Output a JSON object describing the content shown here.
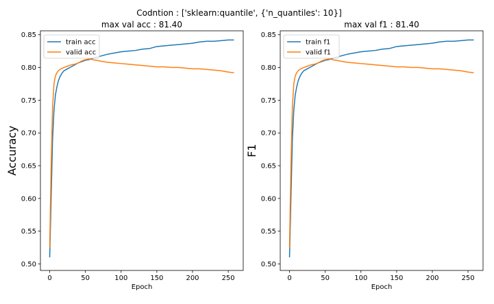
{
  "suptitle": "Codntion : ['sklearn:quantile', {'n_quantiles': 10}]",
  "chart_data": [
    {
      "type": "line",
      "title": "max val acc : 81.40",
      "xlabel": "Epoch",
      "ylabel": "Accuracy",
      "xlim": [
        -13,
        271
      ],
      "ylim": [
        0.49,
        0.856
      ],
      "xticks": [
        0,
        50,
        100,
        150,
        200,
        250
      ],
      "yticks": [
        0.5,
        0.55,
        0.6,
        0.65,
        0.7,
        0.75,
        0.8,
        0.85
      ],
      "ytick_labels": [
        "0.50",
        "0.55",
        "0.60",
        "0.65",
        "0.70",
        "0.75",
        "0.80",
        "0.85"
      ],
      "legend_position": "upper-left",
      "series": [
        {
          "name": "train acc",
          "color": "#1f77b4",
          "x": [
            0,
            2,
            4,
            6,
            8,
            10,
            12,
            14,
            17,
            20,
            25,
            30,
            35,
            40,
            45,
            50,
            55,
            60,
            70,
            80,
            90,
            100,
            110,
            120,
            130,
            140,
            150,
            160,
            170,
            180,
            190,
            200,
            210,
            220,
            230,
            240,
            250,
            258
          ],
          "y": [
            0.51,
            0.6,
            0.69,
            0.735,
            0.758,
            0.77,
            0.779,
            0.785,
            0.791,
            0.795,
            0.798,
            0.801,
            0.804,
            0.807,
            0.809,
            0.811,
            0.812,
            0.814,
            0.817,
            0.82,
            0.822,
            0.824,
            0.825,
            0.826,
            0.828,
            0.829,
            0.832,
            0.833,
            0.834,
            0.835,
            0.836,
            0.837,
            0.839,
            0.84,
            0.84,
            0.841,
            0.842,
            0.842
          ]
        },
        {
          "name": "valid acc",
          "color": "#ff7f0e",
          "x": [
            0,
            2,
            4,
            6,
            8,
            10,
            13,
            16,
            20,
            25,
            30,
            35,
            40,
            45,
            50,
            55,
            60,
            65,
            70,
            80,
            90,
            100,
            110,
            120,
            130,
            140,
            150,
            160,
            170,
            180,
            190,
            200,
            210,
            220,
            230,
            240,
            250,
            258
          ],
          "y": [
            0.525,
            0.65,
            0.74,
            0.775,
            0.787,
            0.792,
            0.796,
            0.798,
            0.8,
            0.802,
            0.804,
            0.805,
            0.807,
            0.81,
            0.812,
            0.813,
            0.812,
            0.811,
            0.81,
            0.808,
            0.807,
            0.806,
            0.805,
            0.804,
            0.803,
            0.802,
            0.801,
            0.801,
            0.8,
            0.8,
            0.799,
            0.798,
            0.798,
            0.797,
            0.796,
            0.795,
            0.793,
            0.792
          ]
        }
      ]
    },
    {
      "type": "line",
      "title": "max val f1 : 81.40",
      "xlabel": "Epoch",
      "ylabel": "F1",
      "xlim": [
        -13,
        271
      ],
      "ylim": [
        0.49,
        0.856
      ],
      "xticks": [
        0,
        50,
        100,
        150,
        200,
        250
      ],
      "yticks": [
        0.5,
        0.55,
        0.6,
        0.65,
        0.7,
        0.75,
        0.8,
        0.85
      ],
      "ytick_labels": [
        "0.50",
        "0.55",
        "0.60",
        "0.65",
        "0.70",
        "0.75",
        "0.80",
        "0.85"
      ],
      "legend_position": "upper-left",
      "series": [
        {
          "name": "train f1",
          "color": "#1f77b4",
          "x": [
            0,
            2,
            4,
            6,
            8,
            10,
            12,
            14,
            17,
            20,
            25,
            30,
            35,
            40,
            45,
            50,
            55,
            60,
            70,
            80,
            90,
            100,
            110,
            120,
            130,
            140,
            150,
            160,
            170,
            180,
            190,
            200,
            210,
            220,
            230,
            240,
            250,
            258
          ],
          "y": [
            0.51,
            0.6,
            0.69,
            0.735,
            0.758,
            0.77,
            0.779,
            0.785,
            0.791,
            0.795,
            0.798,
            0.801,
            0.804,
            0.807,
            0.809,
            0.811,
            0.812,
            0.814,
            0.817,
            0.82,
            0.822,
            0.824,
            0.825,
            0.826,
            0.828,
            0.829,
            0.832,
            0.833,
            0.834,
            0.835,
            0.836,
            0.837,
            0.839,
            0.84,
            0.84,
            0.841,
            0.842,
            0.842
          ]
        },
        {
          "name": "valid f1",
          "color": "#ff7f0e",
          "x": [
            0,
            2,
            4,
            6,
            8,
            10,
            13,
            16,
            20,
            25,
            30,
            35,
            40,
            45,
            50,
            55,
            60,
            65,
            70,
            80,
            90,
            100,
            110,
            120,
            130,
            140,
            150,
            160,
            170,
            180,
            190,
            200,
            210,
            220,
            230,
            240,
            250,
            258
          ],
          "y": [
            0.525,
            0.65,
            0.74,
            0.775,
            0.787,
            0.792,
            0.796,
            0.798,
            0.8,
            0.802,
            0.804,
            0.805,
            0.807,
            0.81,
            0.812,
            0.813,
            0.812,
            0.811,
            0.81,
            0.808,
            0.807,
            0.806,
            0.805,
            0.804,
            0.803,
            0.802,
            0.801,
            0.801,
            0.8,
            0.8,
            0.799,
            0.798,
            0.798,
            0.797,
            0.796,
            0.795,
            0.793,
            0.792
          ]
        }
      ]
    }
  ]
}
